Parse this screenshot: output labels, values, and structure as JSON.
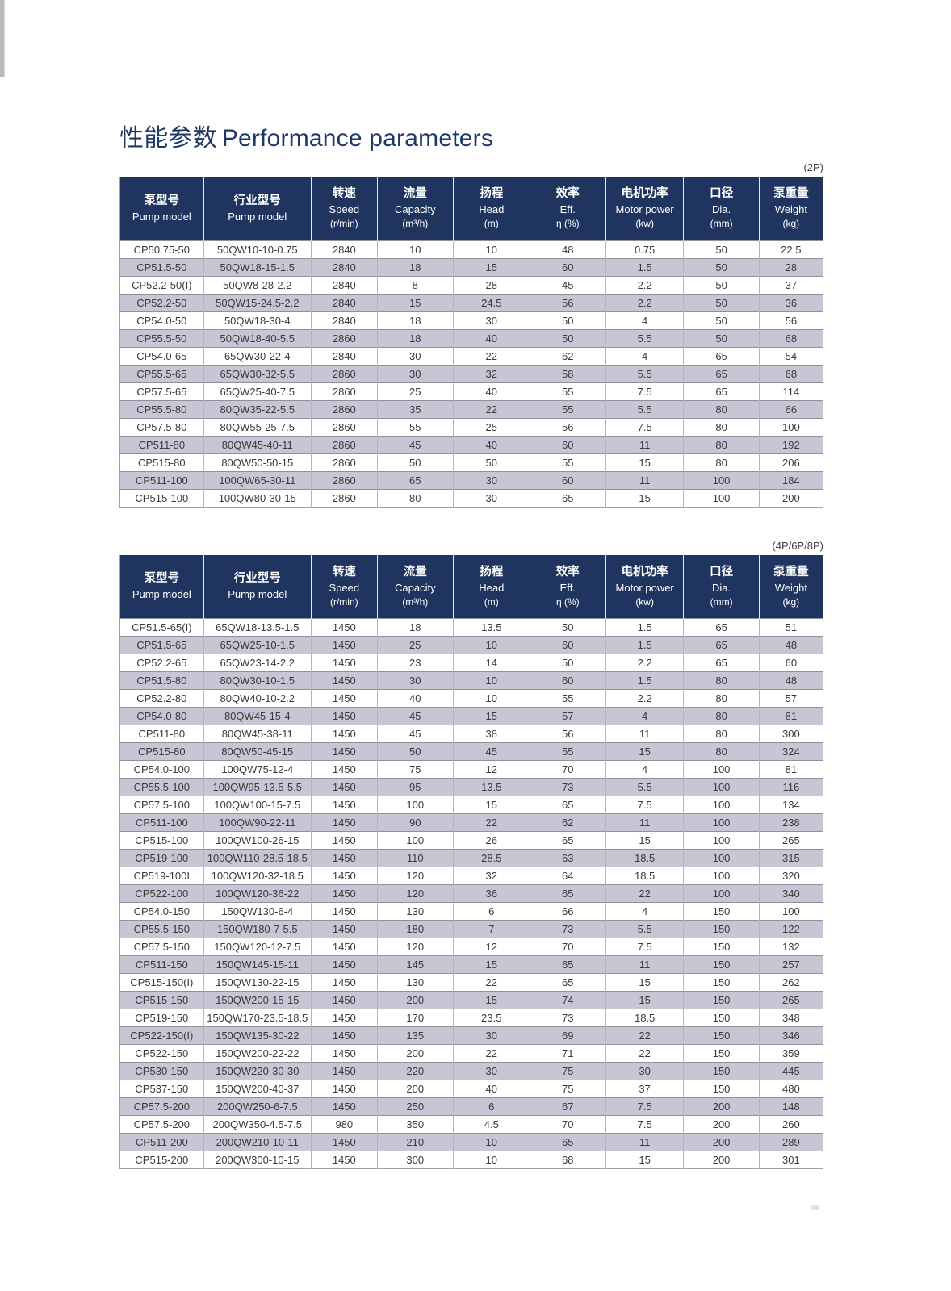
{
  "page": {
    "title_zh": "性能参数",
    "title_en": "Performance parameters"
  },
  "columns": [
    {
      "zh": "泵型号",
      "en": "Pump model",
      "unit": ""
    },
    {
      "zh": "行业型号",
      "en": "Pump model",
      "unit": ""
    },
    {
      "zh": "转速",
      "en": "Speed",
      "unit": "(r/min)"
    },
    {
      "zh": "流量",
      "en": "Capacity",
      "unit": "(m³/h)"
    },
    {
      "zh": "扬程",
      "en": "Head",
      "unit": "(m)"
    },
    {
      "zh": "效率",
      "en": "Eff.",
      "unit": "η  (%)"
    },
    {
      "zh": "电机功率",
      "en": "Motor power",
      "unit": "(kw)"
    },
    {
      "zh": "口径",
      "en": "Dia.",
      "unit": "(mm)"
    },
    {
      "zh": "泵重量",
      "en": "Weight",
      "unit": "(kg)"
    }
  ],
  "table_2p": {
    "tag": "(2P)",
    "rows": [
      [
        "CP50.75-50",
        "50QW10-10-0.75",
        "2840",
        "10",
        "10",
        "48",
        "0.75",
        "50",
        "22.5"
      ],
      [
        "CP51.5-50",
        "50QW18-15-1.5",
        "2840",
        "18",
        "15",
        "60",
        "1.5",
        "50",
        "28"
      ],
      [
        "CP52.2-50(I)",
        "50QW8-28-2.2",
        "2840",
        "8",
        "28",
        "45",
        "2.2",
        "50",
        "37"
      ],
      [
        "CP52.2-50",
        "50QW15-24.5-2.2",
        "2840",
        "15",
        "24.5",
        "56",
        "2.2",
        "50",
        "36"
      ],
      [
        "CP54.0-50",
        "50QW18-30-4",
        "2840",
        "18",
        "30",
        "50",
        "4",
        "50",
        "56"
      ],
      [
        "CP55.5-50",
        "50QW18-40-5.5",
        "2860",
        "18",
        "40",
        "50",
        "5.5",
        "50",
        "68"
      ],
      [
        "CP54.0-65",
        "65QW30-22-4",
        "2840",
        "30",
        "22",
        "62",
        "4",
        "65",
        "54"
      ],
      [
        "CP55.5-65",
        "65QW30-32-5.5",
        "2860",
        "30",
        "32",
        "58",
        "5.5",
        "65",
        "68"
      ],
      [
        "CP57.5-65",
        "65QW25-40-7.5",
        "2860",
        "25",
        "40",
        "55",
        "7.5",
        "65",
        "114"
      ],
      [
        "CP55.5-80",
        "80QW35-22-5.5",
        "2860",
        "35",
        "22",
        "55",
        "5.5",
        "80",
        "66"
      ],
      [
        "CP57.5-80",
        "80QW55-25-7.5",
        "2860",
        "55",
        "25",
        "56",
        "7.5",
        "80",
        "100"
      ],
      [
        "CP511-80",
        "80QW45-40-11",
        "2860",
        "45",
        "40",
        "60",
        "11",
        "80",
        "192"
      ],
      [
        "CP515-80",
        "80QW50-50-15",
        "2860",
        "50",
        "50",
        "55",
        "15",
        "80",
        "206"
      ],
      [
        "CP511-100",
        "100QW65-30-11",
        "2860",
        "65",
        "30",
        "60",
        "11",
        "100",
        "184"
      ],
      [
        "CP515-100",
        "100QW80-30-15",
        "2860",
        "80",
        "30",
        "65",
        "15",
        "100",
        "200"
      ]
    ]
  },
  "table_4p": {
    "tag": "(4P/6P/8P)",
    "rows": [
      [
        "CP51.5-65(I)",
        "65QW18-13.5-1.5",
        "1450",
        "18",
        "13.5",
        "50",
        "1.5",
        "65",
        "51"
      ],
      [
        "CP51.5-65",
        "65QW25-10-1.5",
        "1450",
        "25",
        "10",
        "60",
        "1.5",
        "65",
        "48"
      ],
      [
        "CP52.2-65",
        "65QW23-14-2.2",
        "1450",
        "23",
        "14",
        "50",
        "2.2",
        "65",
        "60"
      ],
      [
        "CP51.5-80",
        "80QW30-10-1.5",
        "1450",
        "30",
        "10",
        "60",
        "1.5",
        "80",
        "48"
      ],
      [
        "CP52.2-80",
        "80QW40-10-2.2",
        "1450",
        "40",
        "10",
        "55",
        "2.2",
        "80",
        "57"
      ],
      [
        "CP54.0-80",
        "80QW45-15-4",
        "1450",
        "45",
        "15",
        "57",
        "4",
        "80",
        "81"
      ],
      [
        "CP511-80",
        "80QW45-38-11",
        "1450",
        "45",
        "38",
        "56",
        "11",
        "80",
        "300"
      ],
      [
        "CP515-80",
        "80QW50-45-15",
        "1450",
        "50",
        "45",
        "55",
        "15",
        "80",
        "324"
      ],
      [
        "CP54.0-100",
        "100QW75-12-4",
        "1450",
        "75",
        "12",
        "70",
        "4",
        "100",
        "81"
      ],
      [
        "CP55.5-100",
        "100QW95-13.5-5.5",
        "1450",
        "95",
        "13.5",
        "73",
        "5.5",
        "100",
        "116"
      ],
      [
        "CP57.5-100",
        "100QW100-15-7.5",
        "1450",
        "100",
        "15",
        "65",
        "7.5",
        "100",
        "134"
      ],
      [
        "CP511-100",
        "100QW90-22-11",
        "1450",
        "90",
        "22",
        "62",
        "11",
        "100",
        "238"
      ],
      [
        "CP515-100",
        "100QW100-26-15",
        "1450",
        "100",
        "26",
        "65",
        "15",
        "100",
        "265"
      ],
      [
        "CP519-100",
        "100QW110-28.5-18.5",
        "1450",
        "110",
        "28.5",
        "63",
        "18.5",
        "100",
        "315"
      ],
      [
        "CP519-100I",
        "100QW120-32-18.5",
        "1450",
        "120",
        "32",
        "64",
        "18.5",
        "100",
        "320"
      ],
      [
        "CP522-100",
        "100QW120-36-22",
        "1450",
        "120",
        "36",
        "65",
        "22",
        "100",
        "340"
      ],
      [
        "CP54.0-150",
        "150QW130-6-4",
        "1450",
        "130",
        "6",
        "66",
        "4",
        "150",
        "100"
      ],
      [
        "CP55.5-150",
        "150QW180-7-5.5",
        "1450",
        "180",
        "7",
        "73",
        "5.5",
        "150",
        "122"
      ],
      [
        "CP57.5-150",
        "150QW120-12-7.5",
        "1450",
        "120",
        "12",
        "70",
        "7.5",
        "150",
        "132"
      ],
      [
        "CP511-150",
        "150QW145-15-11",
        "1450",
        "145",
        "15",
        "65",
        "11",
        "150",
        "257"
      ],
      [
        "CP515-150(I)",
        "150QW130-22-15",
        "1450",
        "130",
        "22",
        "65",
        "15",
        "150",
        "262"
      ],
      [
        "CP515-150",
        "150QW200-15-15",
        "1450",
        "200",
        "15",
        "74",
        "15",
        "150",
        "265"
      ],
      [
        "CP519-150",
        "150QW170-23.5-18.5",
        "1450",
        "170",
        "23.5",
        "73",
        "18.5",
        "150",
        "348"
      ],
      [
        "CP522-150(I)",
        "150QW135-30-22",
        "1450",
        "135",
        "30",
        "69",
        "22",
        "150",
        "346"
      ],
      [
        "CP522-150",
        "150QW200-22-22",
        "1450",
        "200",
        "22",
        "71",
        "22",
        "150",
        "359"
      ],
      [
        "CP530-150",
        "150QW220-30-30",
        "1450",
        "220",
        "30",
        "75",
        "30",
        "150",
        "445"
      ],
      [
        "CP537-150",
        "150QW200-40-37",
        "1450",
        "200",
        "40",
        "75",
        "37",
        "150",
        "480"
      ],
      [
        "CP57.5-200",
        "200QW250-6-7.5",
        "1450",
        "250",
        "6",
        "67",
        "7.5",
        "200",
        "148"
      ],
      [
        "CP57.5-200",
        "200QW350-4.5-7.5",
        "980",
        "350",
        "4.5",
        "70",
        "7.5",
        "200",
        "260"
      ],
      [
        "CP511-200",
        "200QW210-10-11",
        "1450",
        "210",
        "10",
        "65",
        "11",
        "200",
        "289"
      ],
      [
        "CP515-200",
        "200QW300-10-15",
        "1450",
        "300",
        "10",
        "68",
        "15",
        "200",
        "301"
      ]
    ]
  }
}
